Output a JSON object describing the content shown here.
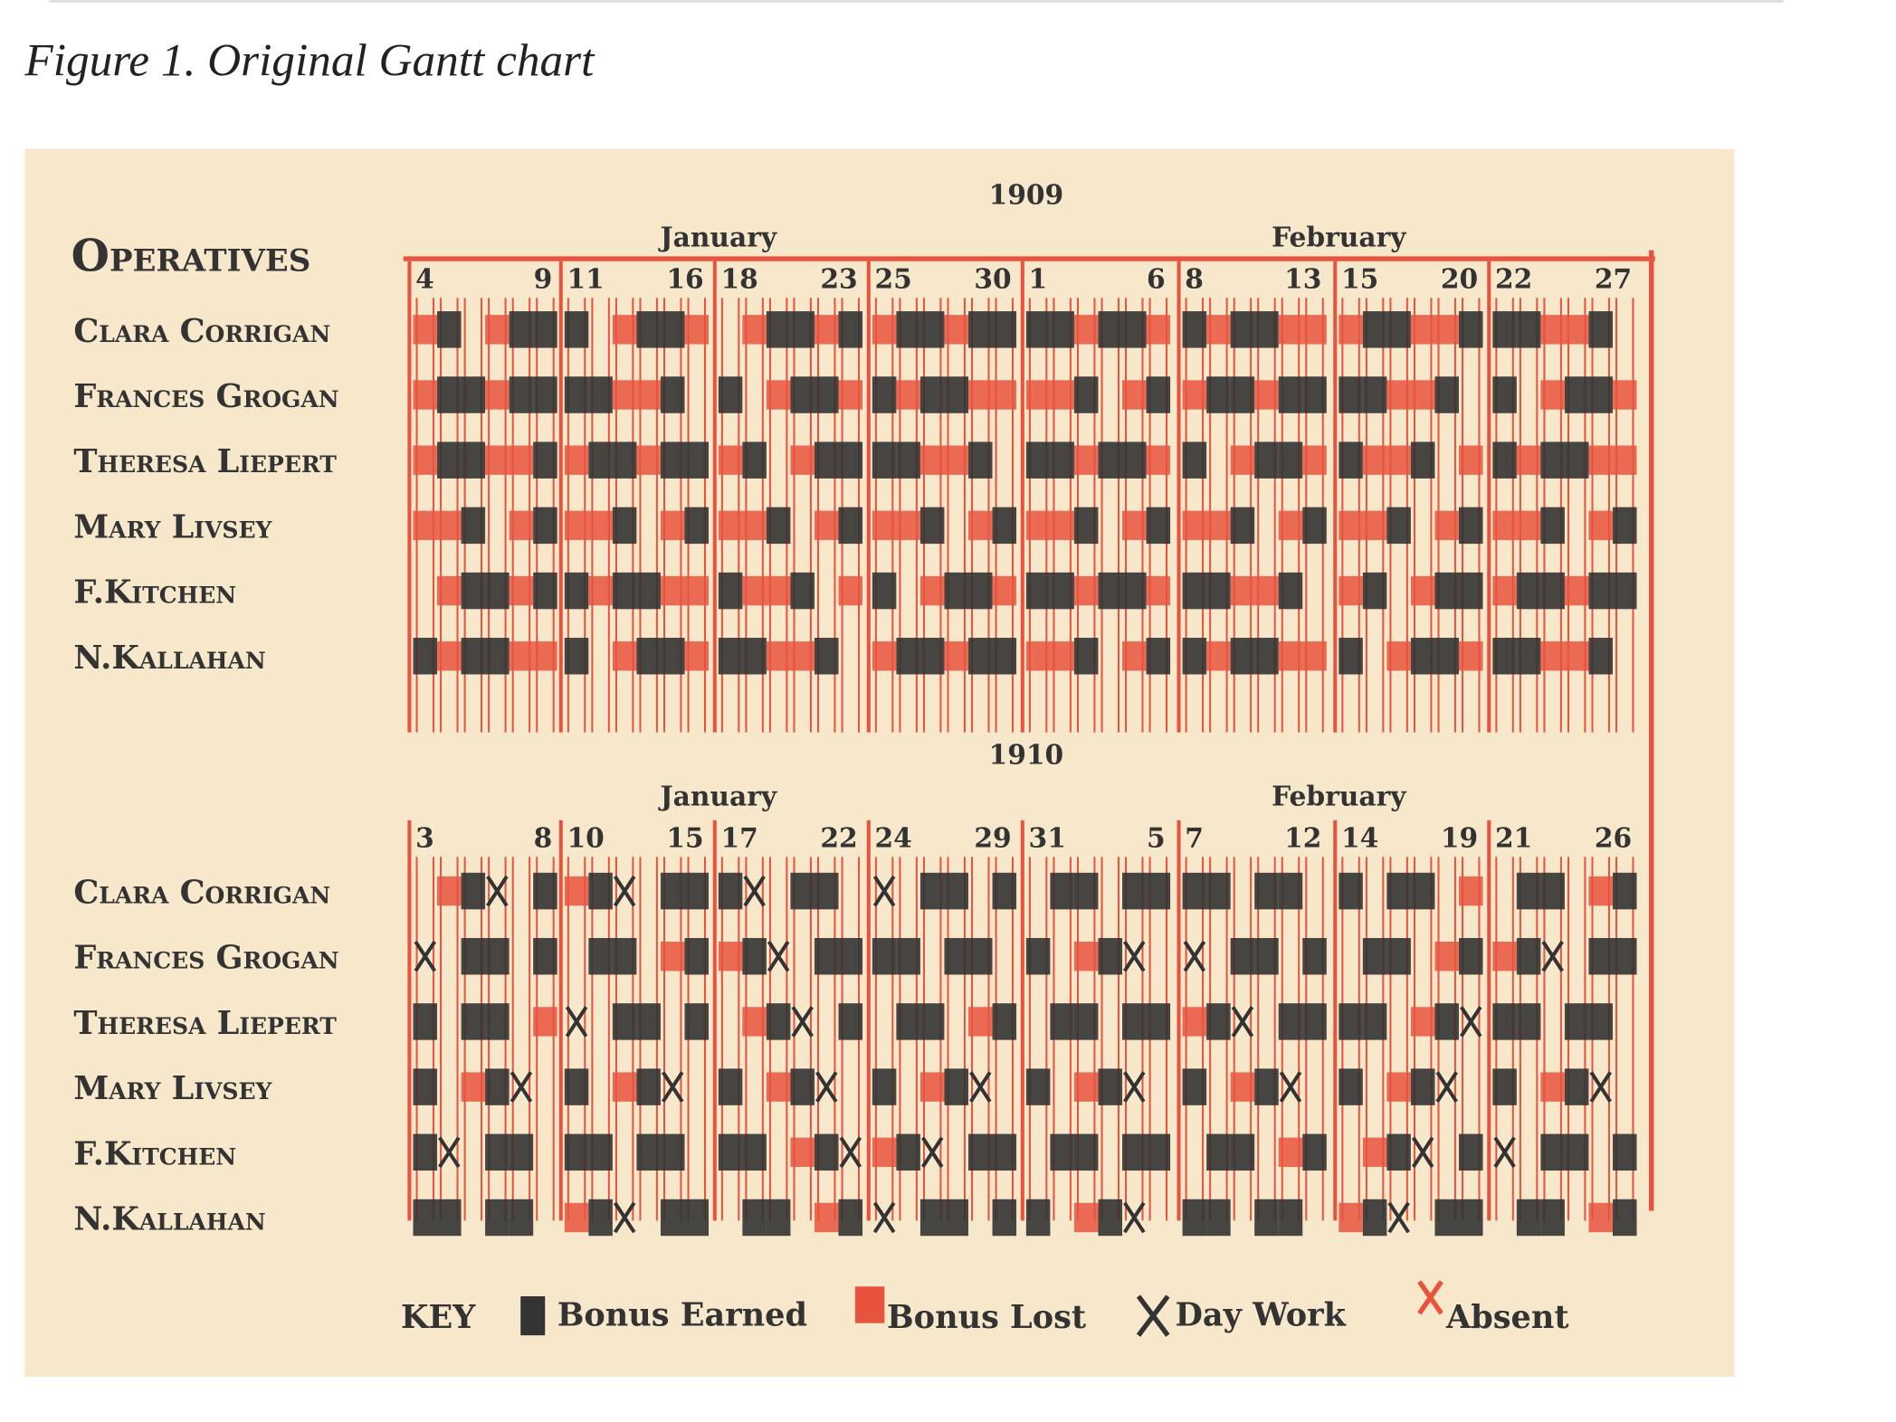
{
  "caption": "Figure 1. Original Gantt chart",
  "header": "Operatives",
  "charts": [
    {
      "year": "1909",
      "months": [
        "January",
        "February"
      ],
      "days": [
        "4",
        "9",
        "11",
        "16",
        "18",
        "23",
        "25",
        "30",
        "1",
        "6",
        "8",
        "13",
        "15",
        "20",
        "22",
        "27"
      ],
      "operatives": [
        "Clara Corrigan",
        "Frances Grogan",
        "Theresa Liepert",
        "Mary Livsey",
        "F.Kitchen",
        "N.Kallahan"
      ]
    },
    {
      "year": "1910",
      "months": [
        "January",
        "February"
      ],
      "days": [
        "3",
        "8",
        "10",
        "15",
        "17",
        "22",
        "24",
        "29",
        "31",
        "5",
        "7",
        "12",
        "14",
        "19",
        "21",
        "26"
      ],
      "operatives": [
        "Clara Corrigan",
        "Frances Grogan",
        "Theresa Liepert",
        "Mary Livsey",
        "F.Kitchen",
        "N.Kallahan"
      ]
    }
  ],
  "key": {
    "label": "KEY",
    "items": [
      "Bonus Earned",
      "Bonus Lost",
      "Day Work",
      "Absent"
    ]
  }
}
